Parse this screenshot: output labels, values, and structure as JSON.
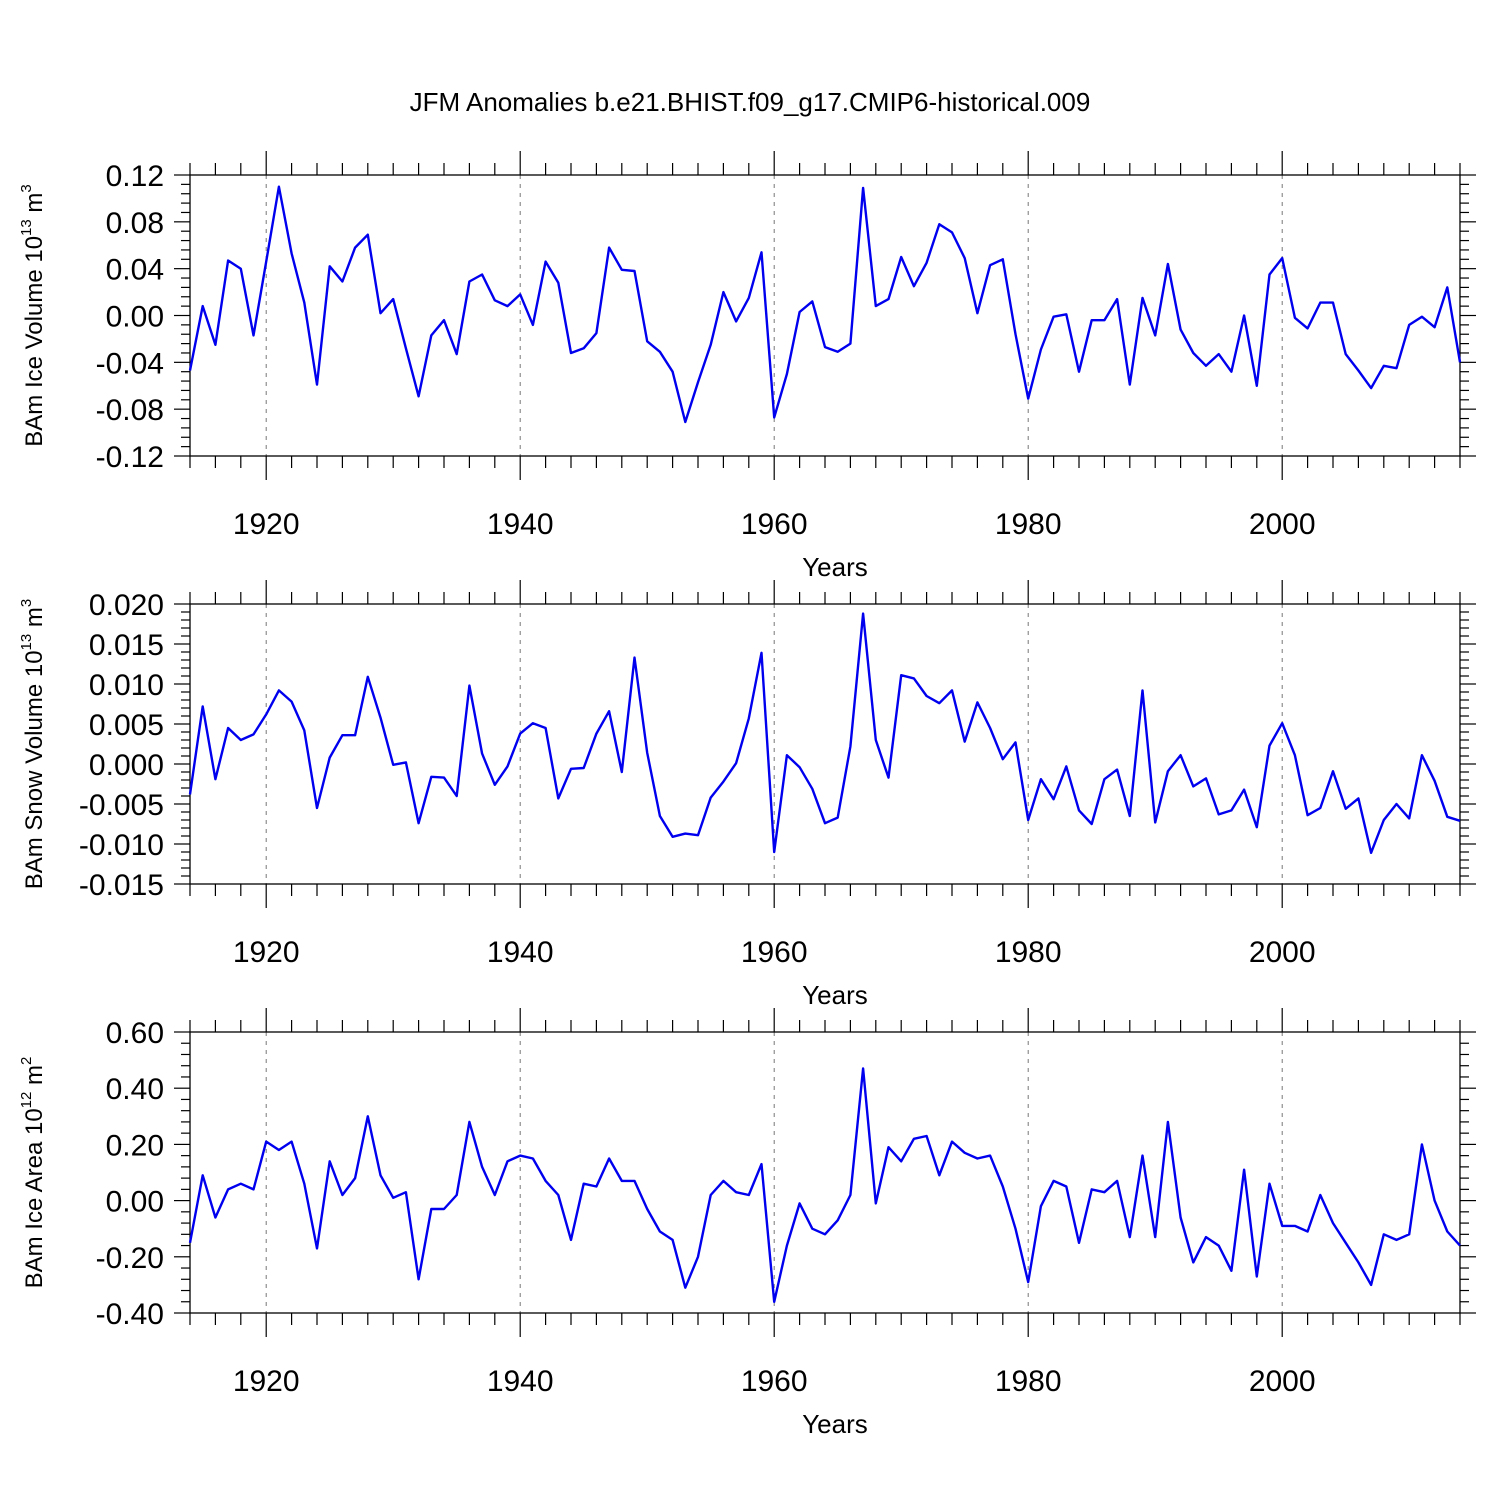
{
  "chart_data": {
    "type": "line",
    "title": "JFM Anomalies b.e21.BHIST.f09_g17.CMIP6-historical.009",
    "line_color": "#0000ee",
    "x": [
      1914,
      1915,
      1916,
      1917,
      1918,
      1919,
      1920,
      1921,
      1922,
      1923,
      1924,
      1925,
      1926,
      1927,
      1928,
      1929,
      1930,
      1931,
      1932,
      1933,
      1934,
      1935,
      1936,
      1937,
      1938,
      1939,
      1940,
      1941,
      1942,
      1943,
      1944,
      1945,
      1946,
      1947,
      1948,
      1949,
      1950,
      1951,
      1952,
      1953,
      1954,
      1955,
      1956,
      1957,
      1958,
      1959,
      1960,
      1961,
      1962,
      1963,
      1964,
      1965,
      1966,
      1967,
      1968,
      1969,
      1970,
      1971,
      1972,
      1973,
      1974,
      1975,
      1976,
      1977,
      1978,
      1979,
      1980,
      1981,
      1982,
      1983,
      1984,
      1985,
      1986,
      1987,
      1988,
      1989,
      1990,
      1991,
      1992,
      1993,
      1994,
      1995,
      1996,
      1997,
      1998,
      1999,
      2000,
      2001,
      2002,
      2003,
      2004,
      2005,
      2006,
      2007,
      2008,
      2009,
      2010,
      2011,
      2012,
      2013,
      2014
    ],
    "xlim": [
      1914,
      2014
    ],
    "xticks": [
      "1920",
      "1940",
      "1960",
      "1980",
      "2000"
    ],
    "panels": [
      {
        "ylabel_prefix": "BAm Ice Volume 10",
        "ylabel_exp": "13",
        "ylabel_unit": " m",
        "ylabel_unit_exp": "3",
        "xlabel": "Years",
        "ylim": [
          -0.12,
          0.12
        ],
        "yticks": [
          "0.12",
          "0.08",
          "0.04",
          "0.00",
          "-0.04",
          "-0.08",
          "-0.12"
        ],
        "values": [
          -0.047,
          0.008,
          -0.025,
          0.047,
          0.04,
          -0.017,
          0.046,
          0.11,
          0.053,
          0.011,
          -0.059,
          0.042,
          0.029,
          0.058,
          0.069,
          0.002,
          0.014,
          -0.028,
          -0.069,
          -0.017,
          -0.004,
          -0.033,
          0.029,
          0.035,
          0.013,
          0.008,
          0.018,
          -0.008,
          0.046,
          0.028,
          -0.032,
          -0.028,
          -0.015,
          0.058,
          0.039,
          0.038,
          -0.022,
          -0.031,
          -0.048,
          -0.091,
          -0.057,
          -0.025,
          0.02,
          -0.005,
          0.015,
          0.054,
          -0.087,
          -0.05,
          0.003,
          0.012,
          -0.027,
          -0.031,
          -0.024,
          0.109,
          0.008,
          0.014,
          0.05,
          0.025,
          0.045,
          0.078,
          0.071,
          0.049,
          0.002,
          0.043,
          0.048,
          -0.016,
          -0.071,
          -0.029,
          -0.001,
          0.001,
          -0.048,
          -0.004,
          -0.004,
          0.014,
          -0.059,
          0.015,
          -0.017,
          0.044,
          -0.012,
          -0.032,
          -0.043,
          -0.033,
          -0.048,
          0.0,
          -0.06,
          0.035,
          0.049,
          -0.002,
          -0.011,
          0.011,
          0.011,
          -0.033,
          -0.047,
          -0.062,
          -0.043,
          -0.045,
          -0.008,
          -0.001,
          -0.01,
          0.024,
          -0.04
        ]
      },
      {
        "ylabel_prefix": "BAm Snow Volume 10",
        "ylabel_exp": "13",
        "ylabel_unit": " m",
        "ylabel_unit_exp": "3",
        "xlabel": "Years",
        "ylim": [
          -0.015,
          0.02
        ],
        "yticks": [
          "0.020",
          "0.015",
          "0.010",
          "0.005",
          "0.000",
          "-0.005",
          "-0.010",
          "-0.015"
        ],
        "values": [
          -0.0038,
          0.0072,
          -0.0019,
          0.0045,
          0.003,
          0.0037,
          0.0062,
          0.0092,
          0.0078,
          0.0042,
          -0.0055,
          0.0008,
          0.0036,
          0.0036,
          0.0109,
          0.0058,
          -0.0001,
          0.0002,
          -0.0074,
          -0.0016,
          -0.0017,
          -0.004,
          0.0098,
          0.0013,
          -0.0026,
          -0.0003,
          0.0038,
          0.0051,
          0.0045,
          -0.0043,
          -0.0006,
          -0.0005,
          0.0038,
          0.0066,
          -0.001,
          0.0133,
          0.0014,
          -0.0065,
          -0.0091,
          -0.0087,
          -0.0089,
          -0.0042,
          -0.0022,
          0.0001,
          0.0057,
          0.0139,
          -0.011,
          0.0011,
          -0.0004,
          -0.0031,
          -0.0074,
          -0.0067,
          0.0022,
          0.0188,
          0.003,
          -0.0017,
          0.0111,
          0.0107,
          0.0085,
          0.0076,
          0.0092,
          0.0028,
          0.0077,
          0.0045,
          0.0006,
          0.0027,
          -0.007,
          -0.0019,
          -0.0044,
          -0.0003,
          -0.0058,
          -0.0075,
          -0.0019,
          -0.0007,
          -0.0065,
          0.0092,
          -0.0073,
          -0.0009,
          0.0011,
          -0.0028,
          -0.0018,
          -0.0063,
          -0.0058,
          -0.0032,
          -0.0079,
          0.0023,
          0.0051,
          0.0011,
          -0.0064,
          -0.0055,
          -0.0009,
          -0.0056,
          -0.0043,
          -0.0111,
          -0.007,
          -0.005,
          -0.0068,
          0.0011,
          -0.0021,
          -0.0066,
          -0.0071
        ]
      },
      {
        "ylabel_prefix": "BAm Ice Area 10",
        "ylabel_exp": "12",
        "ylabel_unit": " m",
        "ylabel_unit_exp": "2",
        "xlabel": "Years",
        "ylim": [
          -0.4,
          0.6
        ],
        "yticks": [
          "0.60",
          "0.40",
          "0.20",
          "0.00",
          "-0.20",
          "-0.40"
        ],
        "values": [
          -0.15,
          0.09,
          -0.06,
          0.04,
          0.06,
          0.04,
          0.21,
          0.18,
          0.21,
          0.06,
          -0.17,
          0.14,
          0.02,
          0.08,
          0.3,
          0.09,
          0.01,
          0.03,
          -0.28,
          -0.03,
          -0.03,
          0.02,
          0.28,
          0.12,
          0.02,
          0.14,
          0.16,
          0.15,
          0.07,
          0.02,
          -0.14,
          0.06,
          0.05,
          0.15,
          0.07,
          0.07,
          -0.03,
          -0.11,
          -0.14,
          -0.31,
          -0.2,
          0.02,
          0.07,
          0.03,
          0.02,
          0.13,
          -0.36,
          -0.16,
          -0.01,
          -0.1,
          -0.12,
          -0.07,
          0.02,
          0.47,
          -0.01,
          0.19,
          0.14,
          0.22,
          0.23,
          0.09,
          0.21,
          0.17,
          0.15,
          0.16,
          0.05,
          -0.1,
          -0.29,
          -0.02,
          0.07,
          0.05,
          -0.15,
          0.04,
          0.03,
          0.07,
          -0.13,
          0.16,
          -0.13,
          0.28,
          -0.06,
          -0.22,
          -0.13,
          -0.16,
          -0.25,
          0.11,
          -0.27,
          0.06,
          -0.09,
          -0.09,
          -0.11,
          0.02,
          -0.08,
          -0.15,
          -0.22,
          -0.3,
          -0.12,
          -0.14,
          -0.12,
          0.2,
          0.0,
          -0.11,
          -0.16
        ]
      }
    ]
  }
}
